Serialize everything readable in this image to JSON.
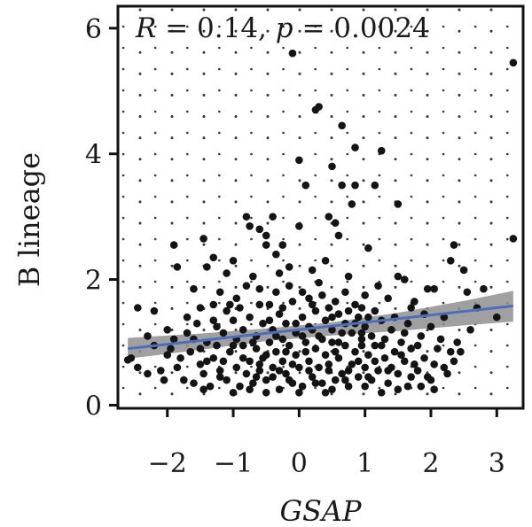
{
  "chart_data": {
    "type": "scatter",
    "title": "",
    "xlabel": "GSAP",
    "ylabel": "B lineage",
    "xlim": [
      -2.75,
      3.4
    ],
    "ylim": [
      -0.05,
      6.35
    ],
    "xticks": [
      -2,
      -1,
      0,
      1,
      2,
      3
    ],
    "xtick_labels": [
      "−2",
      "−1",
      "0",
      "1",
      "2",
      "3"
    ],
    "yticks": [
      0,
      2,
      4,
      6
    ],
    "ytick_labels": [
      "0",
      "2",
      "4",
      "6"
    ],
    "grid": "dotted",
    "annotation": {
      "r_label": "R",
      "r_text": " = 0.14, ",
      "p_label": "p",
      "p_text": " = 0.0024"
    },
    "regression": {
      "color": "#4a6fbf",
      "band_color": "#8f8f8f",
      "line": [
        [
          -2.6,
          0.9
        ],
        [
          3.25,
          1.58
        ]
      ],
      "band_upper": [
        [
          -2.6,
          1.07
        ],
        [
          -1.5,
          1.14
        ],
        [
          -0.5,
          1.22
        ],
        [
          0.5,
          1.32
        ],
        [
          1.5,
          1.47
        ],
        [
          2.5,
          1.66
        ],
        [
          3.25,
          1.82
        ]
      ],
      "band_lower": [
        [
          -2.6,
          0.74
        ],
        [
          -1.5,
          0.88
        ],
        [
          -0.5,
          1.02
        ],
        [
          0.5,
          1.11
        ],
        [
          1.5,
          1.18
        ],
        [
          2.5,
          1.27
        ],
        [
          3.25,
          1.33
        ]
      ]
    },
    "point_color": "#141414",
    "points": [
      [
        3.25,
        5.45
      ],
      [
        -0.1,
        5.6
      ],
      [
        0.3,
        4.75
      ],
      [
        0.25,
        4.7
      ],
      [
        0.65,
        4.45
      ],
      [
        1.25,
        4.05
      ],
      [
        0.85,
        4.1
      ],
      [
        0.5,
        3.8
      ],
      [
        0.0,
        3.9
      ],
      [
        0.1,
        3.5
      ],
      [
        0.65,
        3.5
      ],
      [
        0.85,
        3.5
      ],
      [
        1.15,
        3.5
      ],
      [
        1.5,
        3.2
      ],
      [
        0.8,
        3.2
      ],
      [
        0.45,
        3.0
      ],
      [
        0.55,
        2.9
      ],
      [
        0.6,
        2.7
      ],
      [
        -0.8,
        3.0
      ],
      [
        -0.4,
        3.0
      ],
      [
        -0.6,
        2.8
      ],
      [
        -0.75,
        2.85
      ],
      [
        0.0,
        2.85
      ],
      [
        -0.5,
        2.7
      ],
      [
        -1.45,
        2.65
      ],
      [
        -1.9,
        2.55
      ],
      [
        -1.85,
        2.2
      ],
      [
        -1.3,
        2.35
      ],
      [
        -1.4,
        2.2
      ],
      [
        -1.0,
        2.3
      ],
      [
        0.4,
        2.3
      ],
      [
        1.05,
        2.5
      ],
      [
        2.35,
        2.55
      ],
      [
        3.25,
        2.65
      ],
      [
        2.3,
        2.3
      ],
      [
        2.5,
        2.15
      ],
      [
        -0.5,
        2.55
      ],
      [
        -0.25,
        2.55
      ],
      [
        -0.35,
        2.4
      ],
      [
        -0.15,
        2.2
      ],
      [
        0.2,
        2.15
      ],
      [
        -0.3,
        2.1
      ],
      [
        -0.7,
        2.05
      ],
      [
        -1.1,
        2.1
      ],
      [
        -1.6,
        1.85
      ],
      [
        -2.45,
        1.55
      ],
      [
        -2.2,
        1.5
      ],
      [
        -1.5,
        1.55
      ],
      [
        -1.3,
        1.6
      ],
      [
        -1.1,
        1.5
      ],
      [
        -0.95,
        1.7
      ],
      [
        -0.6,
        1.85
      ],
      [
        -0.45,
        1.6
      ],
      [
        -0.35,
        1.8
      ],
      [
        -0.1,
        1.65
      ],
      [
        0.05,
        1.8
      ],
      [
        0.2,
        1.6
      ],
      [
        0.35,
        1.75
      ],
      [
        0.55,
        1.65
      ],
      [
        0.7,
        1.8
      ],
      [
        0.85,
        1.6
      ],
      [
        1.0,
        1.75
      ],
      [
        1.15,
        1.5
      ],
      [
        1.35,
        1.7
      ],
      [
        1.5,
        2.05
      ],
      [
        1.6,
        2.0
      ],
      [
        1.75,
        1.65
      ],
      [
        1.95,
        1.85
      ],
      [
        2.05,
        1.85
      ],
      [
        2.55,
        1.8
      ],
      [
        2.8,
        1.85
      ],
      [
        -2.0,
        1.2
      ],
      [
        -1.9,
        1.05
      ],
      [
        -1.7,
        1.15
      ],
      [
        -1.55,
        1.3
      ],
      [
        -1.4,
        1.0
      ],
      [
        -1.25,
        1.25
      ],
      [
        -1.15,
        1.15
      ],
      [
        -1.0,
        1.35
      ],
      [
        -0.85,
        1.2
      ],
      [
        -0.75,
        1.4
      ],
      [
        -0.65,
        1.1
      ],
      [
        -0.55,
        1.3
      ],
      [
        -0.4,
        1.2
      ],
      [
        -0.3,
        1.45
      ],
      [
        -0.2,
        1.3
      ],
      [
        -0.05,
        1.15
      ],
      [
        0.05,
        1.4
      ],
      [
        0.15,
        1.25
      ],
      [
        0.25,
        1.5
      ],
      [
        0.3,
        1.1
      ],
      [
        0.4,
        1.35
      ],
      [
        0.5,
        1.2
      ],
      [
        0.6,
        1.45
      ],
      [
        0.7,
        1.3
      ],
      [
        0.8,
        1.15
      ],
      [
        0.9,
        1.4
      ],
      [
        1.0,
        1.25
      ],
      [
        1.1,
        1.1
      ],
      [
        1.25,
        1.35
      ],
      [
        1.4,
        1.2
      ],
      [
        1.55,
        1.0
      ],
      [
        1.65,
        1.3
      ],
      [
        1.85,
        1.1
      ],
      [
        2.0,
        1.25
      ],
      [
        2.15,
        1.05
      ],
      [
        2.3,
        0.85
      ],
      [
        -2.55,
        0.75
      ],
      [
        -2.45,
        0.6
      ],
      [
        -2.3,
        0.5
      ],
      [
        -2.1,
        0.55
      ],
      [
        -2.0,
        0.8
      ],
      [
        -1.85,
        0.6
      ],
      [
        -1.75,
        0.4
      ],
      [
        -1.6,
        0.35
      ],
      [
        -1.5,
        0.65
      ],
      [
        -1.45,
        0.5
      ],
      [
        -1.35,
        0.3
      ],
      [
        -1.3,
        0.75
      ],
      [
        -1.2,
        0.55
      ],
      [
        -1.1,
        0.4
      ],
      [
        -1.05,
        0.85
      ],
      [
        -0.95,
        0.6
      ],
      [
        -0.9,
        0.3
      ],
      [
        -0.85,
        0.95
      ],
      [
        -0.8,
        0.5
      ],
      [
        -0.75,
        0.7
      ],
      [
        -0.7,
        0.35
      ],
      [
        -0.65,
        0.9
      ],
      [
        -0.6,
        0.55
      ],
      [
        -0.55,
        0.75
      ],
      [
        -0.5,
        0.4
      ],
      [
        -0.45,
        1.0
      ],
      [
        -0.4,
        0.6
      ],
      [
        -0.35,
        0.85
      ],
      [
        -0.3,
        0.25
      ],
      [
        -0.25,
        0.7
      ],
      [
        -0.2,
        0.5
      ],
      [
        -0.15,
        0.95
      ],
      [
        -0.1,
        0.35
      ],
      [
        -0.05,
        0.8
      ],
      [
        0.0,
        0.6
      ],
      [
        0.05,
        0.3
      ],
      [
        0.1,
        1.0
      ],
      [
        0.15,
        0.7
      ],
      [
        0.2,
        0.45
      ],
      [
        0.25,
        0.9
      ],
      [
        0.3,
        0.6
      ],
      [
        0.35,
        0.35
      ],
      [
        0.4,
        0.8
      ],
      [
        0.45,
        0.55
      ],
      [
        0.5,
        1.0
      ],
      [
        0.55,
        0.4
      ],
      [
        0.6,
        0.75
      ],
      [
        0.65,
        0.5
      ],
      [
        0.7,
        0.95
      ],
      [
        0.75,
        0.3
      ],
      [
        0.8,
        0.65
      ],
      [
        0.85,
        0.85
      ],
      [
        0.9,
        0.45
      ],
      [
        0.95,
        1.05
      ],
      [
        1.0,
        0.6
      ],
      [
        1.05,
        0.8
      ],
      [
        1.1,
        0.4
      ],
      [
        1.15,
        0.95
      ],
      [
        1.2,
        0.55
      ],
      [
        1.3,
        0.75
      ],
      [
        1.35,
        0.35
      ],
      [
        1.45,
        0.85
      ],
      [
        1.5,
        0.5
      ],
      [
        1.6,
        0.7
      ],
      [
        1.65,
        0.3
      ],
      [
        1.7,
        0.9
      ],
      [
        1.8,
        0.55
      ],
      [
        1.9,
        0.75
      ],
      [
        1.95,
        0.45
      ],
      [
        2.05,
        0.65
      ],
      [
        2.1,
        0.9
      ],
      [
        2.2,
        0.6
      ],
      [
        2.35,
        0.7
      ],
      [
        -1.95,
        0.9
      ],
      [
        -1.65,
        0.85
      ],
      [
        -1.25,
        0.95
      ],
      [
        -0.95,
        1.05
      ],
      [
        -0.7,
        1.0
      ],
      [
        -0.5,
        0.8
      ],
      [
        -0.25,
        1.05
      ],
      [
        0.05,
        1.1
      ],
      [
        0.35,
        1.05
      ],
      [
        0.6,
        1.0
      ],
      [
        0.95,
        0.95
      ],
      [
        1.25,
        0.95
      ],
      [
        1.55,
        0.8
      ],
      [
        1.8,
        0.95
      ],
      [
        -2.2,
        0.95
      ],
      [
        -1.8,
        0.75
      ],
      [
        -1.5,
        0.9
      ],
      [
        -1.15,
        0.7
      ],
      [
        -0.85,
        0.75
      ],
      [
        -0.6,
        0.65
      ],
      [
        -0.3,
        0.55
      ],
      [
        -0.1,
        0.65
      ],
      [
        0.15,
        0.55
      ],
      [
        0.45,
        0.65
      ],
      [
        0.75,
        0.55
      ],
      [
        1.05,
        0.45
      ],
      [
        1.35,
        0.55
      ],
      [
        1.7,
        0.45
      ],
      [
        2.0,
        0.4
      ],
      [
        -1.0,
        0.2
      ],
      [
        -0.5,
        0.2
      ],
      [
        0.0,
        0.2
      ],
      [
        0.5,
        0.25
      ],
      [
        1.0,
        0.3
      ],
      [
        1.5,
        0.25
      ],
      [
        1.85,
        0.3
      ],
      [
        -2.6,
        0.72
      ],
      [
        3.0,
        1.4
      ],
      [
        2.7,
        1.55
      ],
      [
        -0.15,
        1.9
      ],
      [
        0.3,
        1.95
      ],
      [
        0.75,
        2.05
      ],
      [
        -0.8,
        1.9
      ],
      [
        -1.2,
        1.8
      ],
      [
        1.2,
        1.9
      ],
      [
        -2.3,
        1.1
      ],
      [
        2.4,
        1.0
      ],
      [
        2.6,
        1.2
      ],
      [
        -0.9,
        1.55
      ],
      [
        0.45,
        1.55
      ],
      [
        0.95,
        1.55
      ],
      [
        1.9,
        1.45
      ],
      [
        2.2,
        1.4
      ],
      [
        -1.7,
        1.4
      ],
      [
        -1.2,
        0.45
      ],
      [
        -0.4,
        0.45
      ],
      [
        0.7,
        0.4
      ],
      [
        1.4,
        0.6
      ],
      [
        2.25,
        0.5
      ],
      [
        -2.05,
        0.4
      ],
      [
        1.15,
        0.7
      ],
      [
        -0.65,
        0.45
      ],
      [
        0.25,
        0.35
      ],
      [
        0.9,
        0.7
      ],
      [
        -1.4,
        0.7
      ],
      [
        1.75,
        0.65
      ],
      [
        2.45,
        0.85
      ],
      [
        -0.2,
        0.85
      ],
      [
        0.55,
        0.85
      ],
      [
        -1.0,
        0.95
      ],
      [
        0.1,
        0.85
      ],
      [
        1.3,
        1.05
      ],
      [
        -0.05,
        1.3
      ],
      [
        0.85,
        1.3
      ],
      [
        -1.3,
        1.35
      ],
      [
        1.7,
        1.55
      ],
      [
        -0.6,
        1.6
      ],
      [
        0.15,
        1.7
      ],
      [
        -0.35,
        1.1
      ],
      [
        0.95,
        1.15
      ],
      [
        -1.6,
        1.05
      ],
      [
        1.45,
        1.4
      ],
      [
        0.65,
        1.15
      ],
      [
        -0.15,
        0.4
      ],
      [
        0.4,
        0.2
      ],
      [
        1.25,
        0.2
      ],
      [
        -1.45,
        0.25
      ],
      [
        -0.75,
        0.25
      ],
      [
        2.05,
        0.25
      ],
      [
        0.2,
        1.2
      ],
      [
        -0.45,
        1.35
      ],
      [
        0.75,
        1.5
      ],
      [
        1.05,
        1.4
      ],
      [
        -1.05,
        1.6
      ],
      [
        1.6,
        1.15
      ],
      [
        -0.25,
        1.55
      ],
      [
        0.5,
        1.4
      ]
    ]
  }
}
